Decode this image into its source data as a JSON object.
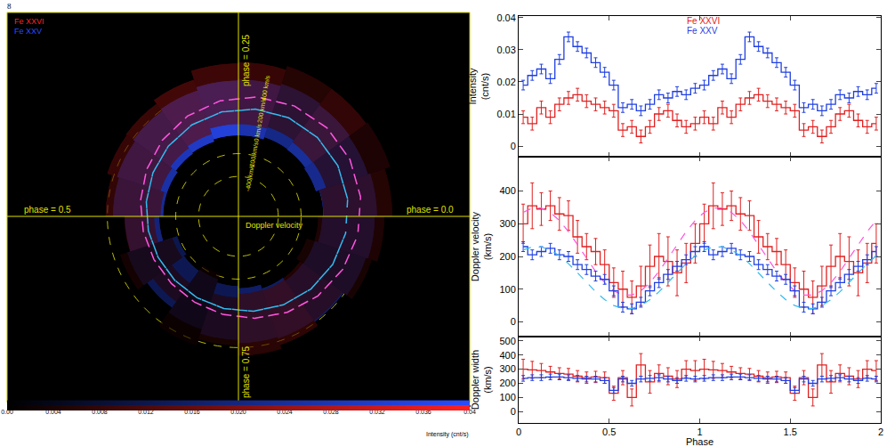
{
  "page_number": "8",
  "chart_data": [
    {
      "type": "polar_map",
      "series": [
        {
          "name": "Fe XXVI",
          "color": "#ff2020"
        },
        {
          "name": "Fe XXV",
          "color": "#2a4cff"
        }
      ],
      "phase_labels": [
        {
          "value": 0.25,
          "label": "phase = 0.25"
        },
        {
          "value": 0,
          "label": "phase = 0.0"
        },
        {
          "value": 0.5,
          "label": "phase = 0.5"
        },
        {
          "value": 0.75,
          "label": "phase = 0.75"
        }
      ],
      "rlim": [
        -750,
        850
      ],
      "rticks": [
        {
          "value": -400,
          "label": "-400 km/s"
        },
        {
          "value": -200,
          "label": "-200 km/s"
        },
        {
          "value": 0,
          "label": "0 km/s"
        },
        {
          "value": 200,
          "label": "200 km/s"
        },
        {
          "value": 400,
          "label": "400 km/s"
        }
      ],
      "label": "Doppler velocity",
      "colorbar": {
        "title": "Intensity (cnt/s)",
        "range": [
          0,
          0.04
        ],
        "ticks": [
          {
            "value": 0,
            "label": "0.00"
          },
          0.004,
          0.008,
          0.012,
          0.016,
          {
            "value": 0.02,
            "label": "0.020"
          },
          0.024,
          0.028,
          0.032,
          0.036,
          0.04
        ]
      }
    },
    {
      "type": "line",
      "x": [
        0.025,
        0.075,
        0.125,
        0.175,
        0.225,
        0.275,
        0.325,
        0.375,
        0.425,
        0.475,
        0.525,
        0.575,
        0.625,
        0.675,
        0.725,
        0.775,
        0.825,
        0.875,
        0.925,
        0.975,
        1.025,
        1.075,
        1.125,
        1.175,
        1.225,
        1.275,
        1.325,
        1.375,
        1.425,
        1.475,
        1.525,
        1.575,
        1.625,
        1.675,
        1.725,
        1.775,
        1.825,
        1.875,
        1.925,
        1.975
      ],
      "xlim": [
        0,
        2
      ],
      "xticks": [
        0,
        0.5,
        1,
        1.5,
        2
      ],
      "xlabel": "Phase",
      "panels": [
        {
          "ylabel": "Intensity (cnt/s)",
          "ylim": [
            -0.0033,
            0.0405
          ],
          "yticks": [
            0,
            0.01,
            0.02,
            0.03,
            0.04
          ],
          "series": [
            {
              "name": "Fe XXVI",
              "color": "#e02020",
              "values": [
                0.009,
                0.007,
                0.012,
                0.009,
                0.013,
                0.015,
                0.016,
                0.014,
                0.013,
                0.012,
                0.011,
                0.005,
                0.006,
                0.003,
                0.006,
                0.01,
                0.011,
                0.008,
                0.006,
                0.007,
                0.009,
                0.007,
                0.012,
                0.009,
                0.013,
                0.015,
                0.016,
                0.014,
                0.013,
                0.012,
                0.011,
                0.005,
                0.006,
                0.003,
                0.006,
                0.01,
                0.011,
                0.008,
                0.006,
                0.007
              ],
              "errors": [
                0.002,
                0.002,
                0.002,
                0.002,
                0.002,
                0.002,
                0.002,
                0.002,
                0.002,
                0.002,
                0.002,
                0.002,
                0.002,
                0.002,
                0.002,
                0.002,
                0.002,
                0.002,
                0.002,
                0.002,
                0.002,
                0.002,
                0.002,
                0.002,
                0.002,
                0.002,
                0.002,
                0.002,
                0.002,
                0.002,
                0.002,
                0.002,
                0.002,
                0.002,
                0.002,
                0.002,
                0.002,
                0.002,
                0.002,
                0.002
              ]
            },
            {
              "name": "Fe XXV",
              "color": "#1f3fe0",
              "values": [
                0.019,
                0.022,
                0.024,
                0.021,
                0.027,
                0.034,
                0.031,
                0.029,
                0.026,
                0.023,
                0.019,
                0.012,
                0.013,
                0.011,
                0.013,
                0.016,
                0.015,
                0.017,
                0.016,
                0.018,
                0.019,
                0.022,
                0.024,
                0.021,
                0.027,
                0.034,
                0.031,
                0.029,
                0.026,
                0.023,
                0.019,
                0.012,
                0.013,
                0.011,
                0.013,
                0.016,
                0.015,
                0.017,
                0.016,
                0.018
              ],
              "errors": [
                0.0015,
                0.0015,
                0.0015,
                0.0015,
                0.0015,
                0.0015,
                0.0015,
                0.0015,
                0.0015,
                0.0015,
                0.0015,
                0.0015,
                0.0015,
                0.0015,
                0.0015,
                0.0015,
                0.0015,
                0.0015,
                0.0015,
                0.0015,
                0.0015,
                0.0015,
                0.0015,
                0.0015,
                0.0015,
                0.0015,
                0.0015,
                0.0015,
                0.0015,
                0.0015,
                0.0015,
                0.0015,
                0.0015,
                0.0015,
                0.0015,
                0.0015,
                0.0015,
                0.0015,
                0.0015,
                0.0015
              ]
            }
          ]
        },
        {
          "ylabel": "Doppler velocity (km/s)",
          "ylim": [
            -45,
            505
          ],
          "yticks": [
            0,
            100,
            200,
            300,
            400
          ],
          "series": [
            {
              "name": "Fe XXVI",
              "color": "#e02020",
              "values": [
                300,
                355,
                345,
                355,
                330,
                325,
                260,
                230,
                215,
                175,
                120,
                100,
                75,
                110,
                170,
                200,
                185,
                150,
                180,
                240,
                300,
                355,
                345,
                355,
                330,
                325,
                260,
                230,
                215,
                175,
                120,
                100,
                75,
                110,
                170,
                200,
                185,
                150,
                180,
                240
              ],
              "errors": [
                60,
                70,
                50,
                45,
                50,
                45,
                50,
                40,
                40,
                45,
                45,
                55,
                50,
                60,
                65,
                70,
                75,
                70,
                60,
                60,
                60,
                70,
                50,
                45,
                50,
                45,
                50,
                40,
                40,
                45,
                45,
                55,
                50,
                60,
                65,
                70,
                75,
                70,
                60,
                60
              ],
              "fit": {
                "color": "#ff55dd",
                "line_style": "dashed",
                "values": [
                  335,
                  348,
                  348,
                  335,
                  310,
                  276,
                  236,
                  194,
                  154,
                  120,
                  95,
                  82,
                  82,
                  95,
                  120,
                  154,
                  194,
                  236,
                  276,
                  310,
                  335,
                  348,
                  348,
                  335,
                  310,
                  276,
                  236,
                  194,
                  154,
                  120,
                  95,
                  82,
                  82,
                  95,
                  120,
                  154,
                  194,
                  236,
                  276,
                  310
                ]
              }
            },
            {
              "name": "Fe XXV",
              "color": "#1f3fe0",
              "values": [
                230,
                205,
                215,
                225,
                205,
                200,
                175,
                160,
                140,
                130,
                95,
                45,
                40,
                60,
                95,
                120,
                145,
                170,
                190,
                215,
                230,
                205,
                215,
                225,
                205,
                200,
                175,
                160,
                140,
                130,
                95,
                45,
                40,
                60,
                95,
                120,
                145,
                170,
                190,
                215
              ],
              "errors": [
                15,
                15,
                15,
                15,
                15,
                15,
                15,
                15,
                15,
                15,
                15,
                15,
                15,
                15,
                15,
                15,
                15,
                15,
                15,
                15,
                15,
                15,
                15,
                15,
                15,
                15,
                15,
                15,
                15,
                15,
                15,
                15,
                15,
                15,
                15,
                15,
                15,
                15,
                15,
                15
              ],
              "fit": {
                "color": "#33bbee",
                "line_style": "dashed",
                "values": [
                  220,
                  229,
                  229,
                  220,
                  202,
                  178,
                  150,
                  120,
                  92,
                  68,
                  50,
                  41,
                  41,
                  50,
                  68,
                  92,
                  120,
                  150,
                  178,
                  202,
                  220,
                  229,
                  229,
                  220,
                  202,
                  178,
                  150,
                  120,
                  92,
                  68,
                  50,
                  41,
                  41,
                  50,
                  68,
                  92,
                  120,
                  150,
                  178,
                  202
                ]
              }
            }
          ]
        },
        {
          "ylabel": "Doppler width (km/s)",
          "ylim": [
            -80,
            530
          ],
          "yticks": [
            0,
            100,
            200,
            300,
            400,
            500
          ],
          "series": [
            {
              "name": "Fe XXVI",
              "color": "#e02020",
              "values": [
                300,
                295,
                290,
                280,
                270,
                265,
                250,
                240,
                245,
                240,
                130,
                240,
                100,
                330,
                210,
                270,
                250,
                230,
                300,
                290,
                300,
                295,
                290,
                280,
                270,
                265,
                250,
                240,
                245,
                240,
                130,
                240,
                100,
                330,
                210,
                270,
                250,
                230,
                300,
                290
              ],
              "errors": [
                70,
                60,
                50,
                40,
                40,
                40,
                40,
                40,
                40,
                40,
                50,
                50,
                60,
                80,
                80,
                60,
                60,
                60,
                60,
                70,
                70,
                60,
                50,
                40,
                40,
                40,
                40,
                40,
                40,
                40,
                50,
                50,
                60,
                80,
                80,
                60,
                60,
                60,
                60,
                70
              ]
            },
            {
              "name": "Fe XXV",
              "color": "#1f3fe0",
              "values": [
                235,
                240,
                240,
                245,
                245,
                240,
                235,
                230,
                230,
                220,
                150,
                230,
                200,
                230,
                235,
                240,
                230,
                220,
                235,
                230,
                235,
                240,
                240,
                245,
                245,
                240,
                235,
                230,
                230,
                220,
                150,
                230,
                200,
                230,
                235,
                240,
                230,
                220,
                235,
                230
              ],
              "errors": [
                20,
                20,
                20,
                20,
                20,
                20,
                20,
                20,
                20,
                20,
                20,
                20,
                20,
                20,
                20,
                20,
                20,
                20,
                20,
                20,
                20,
                20,
                20,
                20,
                20,
                20,
                20,
                20,
                20,
                20,
                20,
                20,
                20,
                20,
                20,
                20,
                20,
                20,
                20,
                20
              ]
            }
          ]
        }
      ]
    }
  ]
}
